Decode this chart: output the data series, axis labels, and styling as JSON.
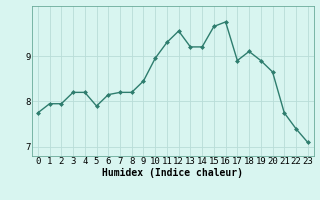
{
  "x": [
    0,
    1,
    2,
    3,
    4,
    5,
    6,
    7,
    8,
    9,
    10,
    11,
    12,
    13,
    14,
    15,
    16,
    17,
    18,
    19,
    20,
    21,
    22,
    23
  ],
  "y": [
    7.75,
    7.95,
    7.95,
    8.2,
    8.2,
    7.9,
    8.15,
    8.2,
    8.2,
    8.45,
    8.95,
    9.3,
    9.55,
    9.2,
    9.2,
    9.65,
    9.75,
    8.9,
    9.1,
    8.9,
    8.65,
    7.75,
    7.4,
    7.1
  ],
  "line_color": "#2e7d6e",
  "marker": "D",
  "marker_size": 2.0,
  "bg_color": "#d8f5f0",
  "grid_color": "#b8ddd8",
  "xlabel": "Humidex (Indice chaleur)",
  "xlabel_fontsize": 7,
  "tick_fontsize": 6.5,
  "ylim": [
    6.8,
    10.1
  ],
  "xlim": [
    -0.5,
    23.5
  ],
  "yticks": [
    7,
    8,
    9
  ],
  "xticks": [
    0,
    1,
    2,
    3,
    4,
    5,
    6,
    7,
    8,
    9,
    10,
    11,
    12,
    13,
    14,
    15,
    16,
    17,
    18,
    19,
    20,
    21,
    22,
    23
  ],
  "line_width": 1.0
}
